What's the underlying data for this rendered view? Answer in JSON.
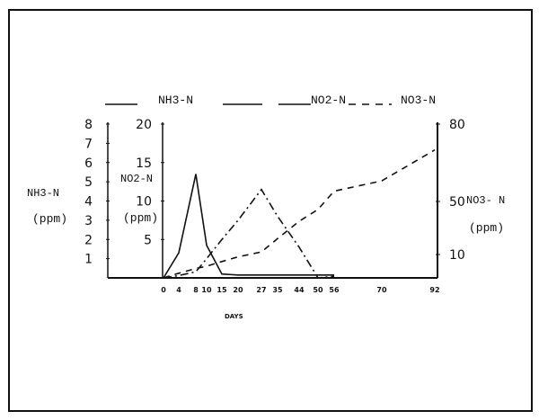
{
  "chart_data": {
    "type": "line",
    "title": "",
    "xlabel": "DAYS",
    "x_ticks": [
      0,
      4,
      8,
      10,
      15,
      20,
      27,
      35,
      44,
      50,
      56,
      70,
      92
    ],
    "legend": [
      {
        "name": "NH3-N",
        "style": "solid"
      },
      {
        "name": "NO2-N",
        "style": "dash-dot"
      },
      {
        "name": "NO3-N",
        "style": "dashed"
      }
    ],
    "axes": {
      "nh3": {
        "label": "NH3-N",
        "unit": "(ppm)",
        "ticks": [
          1,
          2,
          3,
          4,
          5,
          6,
          7,
          8
        ],
        "ylim": [
          0,
          8
        ],
        "position": "left-outer"
      },
      "no2": {
        "label": "NO2-N",
        "unit": "(ppm)",
        "ticks": [
          5,
          10,
          15,
          20
        ],
        "ylim": [
          0,
          20
        ],
        "position": "left-inner"
      },
      "no3": {
        "label": "NO3- N",
        "unit": "(ppm)",
        "ticks": [
          10,
          50,
          80
        ],
        "ylim": [
          0,
          80
        ],
        "position": "right"
      }
    },
    "series": [
      {
        "name": "NH3-N",
        "axis": "nh3",
        "style": "solid",
        "x": [
          0,
          4,
          8,
          10,
          15,
          20,
          27,
          35,
          44,
          50,
          56
        ],
        "values": [
          0,
          1.3,
          5.4,
          1.7,
          0.2,
          0.15,
          0.15,
          0.15,
          0.15,
          0.15,
          0.15
        ]
      },
      {
        "name": "NO2-N",
        "axis": "no2",
        "style": "dash-dot",
        "x": [
          0,
          4,
          8,
          10,
          15,
          20,
          27,
          35,
          44,
          50,
          56
        ],
        "values": [
          0,
          0.3,
          0.8,
          2.5,
          5.0,
          7.5,
          11.5,
          8.0,
          4.0,
          0,
          0.2
        ]
      },
      {
        "name": "NO3-N",
        "axis": "no3",
        "style": "dashed",
        "x": [
          0,
          4,
          8,
          10,
          15,
          20,
          27,
          35,
          44,
          50,
          56,
          70,
          92
        ],
        "values": [
          0,
          2,
          4,
          5,
          7,
          9,
          12,
          22,
          35,
          44,
          54,
          58,
          70
        ]
      }
    ]
  },
  "legend_labels": {
    "nh3": "NH3-N",
    "no2": "NO2-N",
    "no3": "NO3-N"
  },
  "axis_labels": {
    "nh3_name": "NH3-N",
    "nh3_unit": "(ppm)",
    "no2_name": "NO2-N",
    "no2_unit": "(ppm)",
    "no3_name": "NO3- N",
    "no3_unit": "(ppm)",
    "x_name": "DAYS"
  }
}
